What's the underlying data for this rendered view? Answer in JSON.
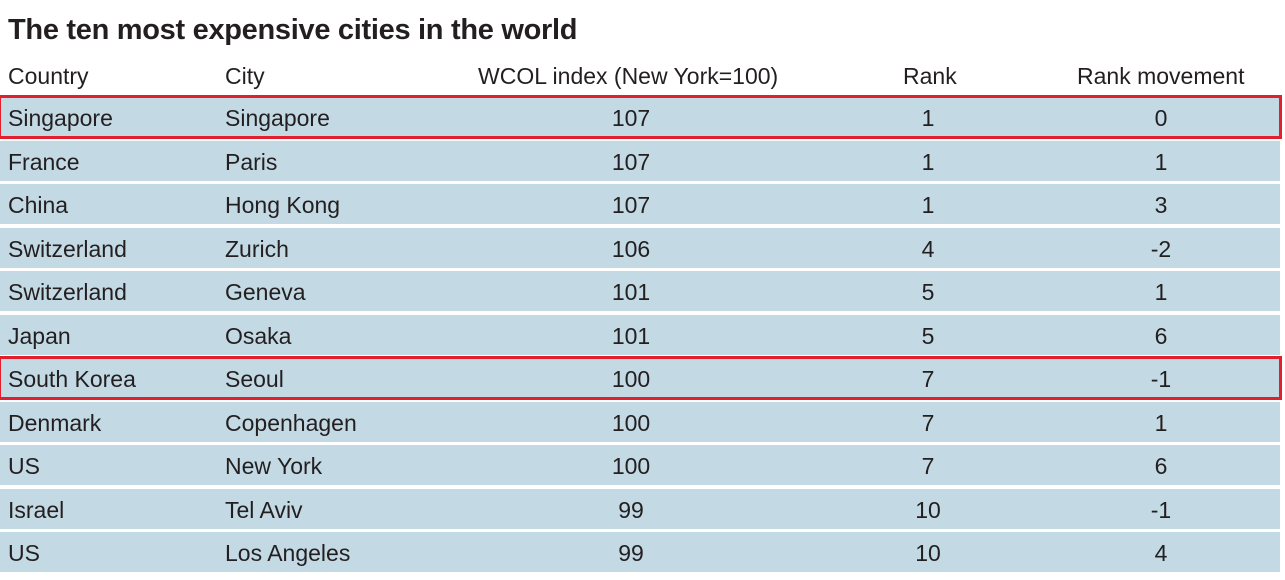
{
  "chart_data": {
    "type": "table",
    "title": "The ten most expensive cities in the world",
    "columns": [
      "Country",
      "City",
      "WCOL index (New York=100)",
      "Rank",
      "Rank movement"
    ],
    "rows": [
      {
        "country": "Singapore",
        "city": "Singapore",
        "index": "107",
        "rank": "1",
        "movement": "0",
        "highlighted": true
      },
      {
        "country": "France",
        "city": "Paris",
        "index": "107",
        "rank": "1",
        "movement": "1",
        "highlighted": false
      },
      {
        "country": "China",
        "city": "Hong Kong",
        "index": "107",
        "rank": "1",
        "movement": "3",
        "highlighted": false
      },
      {
        "country": "Switzerland",
        "city": "Zurich",
        "index": "106",
        "rank": "4",
        "movement": "-2",
        "highlighted": false
      },
      {
        "country": "Switzerland",
        "city": "Geneva",
        "index": "101",
        "rank": "5",
        "movement": "1",
        "highlighted": false
      },
      {
        "country": "Japan",
        "city": "Osaka",
        "index": "101",
        "rank": "5",
        "movement": "6",
        "highlighted": false
      },
      {
        "country": "South Korea",
        "city": "Seoul",
        "index": "100",
        "rank": "7",
        "movement": "-1",
        "highlighted": true
      },
      {
        "country": "Denmark",
        "city": "Copenhagen",
        "index": "100",
        "rank": "7",
        "movement": "1",
        "highlighted": false
      },
      {
        "country": "US",
        "city": "New York",
        "index": "100",
        "rank": "7",
        "movement": "6",
        "highlighted": false
      },
      {
        "country": "Israel",
        "city": "Tel Aviv",
        "index": "99",
        "rank": "10",
        "movement": "-1",
        "highlighted": false
      },
      {
        "country": "US",
        "city": "Los Angeles",
        "index": "99",
        "rank": "10",
        "movement": "4",
        "highlighted": false
      }
    ]
  },
  "colors": {
    "row_background": "#c3d9e4",
    "highlight_border": "#e0202c",
    "text": "#231f20"
  }
}
